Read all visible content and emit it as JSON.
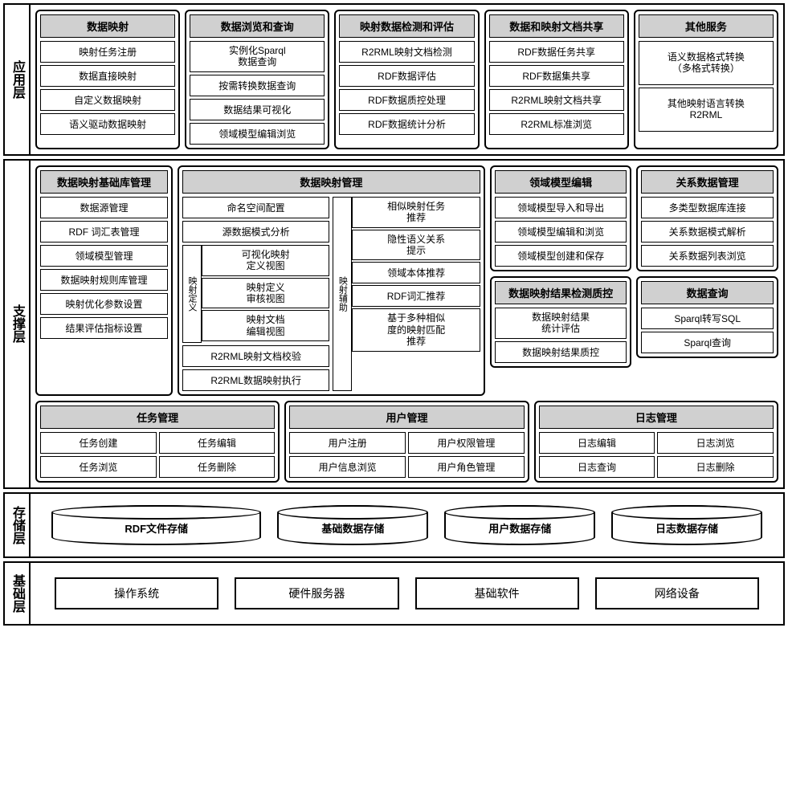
{
  "layers": {
    "app": {
      "label": "应用层"
    },
    "support": {
      "label": "支撑层"
    },
    "storage": {
      "label": "存储层"
    },
    "base": {
      "label": "基础层"
    }
  },
  "app": {
    "m1": {
      "header": "数据映射",
      "items": [
        "映射任务注册",
        "数据直接映射",
        "自定义数据映射",
        "语义驱动数据映射"
      ]
    },
    "m2": {
      "header": "数据浏览和查询",
      "items": [
        "实例化Sparql\n数据查询",
        "按需转换数据查询",
        "数据结果可视化",
        "领域模型编辑浏览"
      ]
    },
    "m3": {
      "header": "映射数据检测和评估",
      "items": [
        "R2RML映射文档检测",
        "RDF数据评估",
        "RDF数据质控处理",
        "RDF数据统计分析"
      ]
    },
    "m4": {
      "header": "数据和映射文档共享",
      "items": [
        "RDF数据任务共享",
        "RDF数据集共享",
        "R2RML映射文档共享",
        "R2RML标准浏览"
      ]
    },
    "m5": {
      "header": "其他服务",
      "items": [
        "语义数据格式转换\n（多格式转换）",
        "其他映射语言转换\nR2RML"
      ]
    }
  },
  "support": {
    "baselib": {
      "header": "数据映射基础库管理",
      "items": [
        "数据源管理",
        "RDF 词汇表管理",
        "领域模型管理",
        "数据映射规则库管理",
        "映射优化参数设置",
        "结果评估指标设置"
      ]
    },
    "mapping": {
      "header": "数据映射管理",
      "left_top": [
        "命名空间配置",
        "源数据模式分析"
      ],
      "def_label": "映射定义",
      "def_items": [
        "可视化映射\n定义视图",
        "映射定义\n审核视图",
        "映射文档\n编辑视图"
      ],
      "left_bottom": [
        "R2RML映射文档校验",
        "R2RML数据映射执行"
      ],
      "aux_label": "映射辅助",
      "aux_items": [
        "相似映射任务\n推荐",
        "隐性语义关系\n提示",
        "领域本体推荐",
        "RDF词汇推荐",
        "基于多种相似\n度的映射匹配\n推荐"
      ]
    },
    "domain": {
      "header": "领域模型编辑",
      "items": [
        "领域模型导入和导出",
        "领域模型编辑和浏览",
        "领域模型创建和保存"
      ]
    },
    "qc": {
      "header": "数据映射结果检测质控",
      "items": [
        "数据映射结果\n统计评估",
        "数据映射结果质控"
      ]
    },
    "relation": {
      "header": "关系数据管理",
      "items": [
        "多类型数据库连接",
        "关系数据模式解析",
        "关系数据列表浏览"
      ]
    },
    "query": {
      "header": "数据查询",
      "items": [
        "Sparql转写SQL",
        "Sparql查询"
      ]
    },
    "task": {
      "header": "任务管理",
      "left": [
        "任务创建",
        "任务浏览"
      ],
      "right": [
        "任务编辑",
        "任务删除"
      ]
    },
    "user": {
      "header": "用户管理",
      "left": [
        "用户注册",
        "用户信息浏览"
      ],
      "right": [
        "用户权限管理",
        "用户角色管理"
      ]
    },
    "log": {
      "header": "日志管理",
      "left": [
        "日志编辑",
        "日志查询"
      ],
      "right": [
        "日志浏览",
        "日志删除"
      ]
    }
  },
  "storage": [
    "RDF文件存储",
    "基础数据存储",
    "用户数据存储",
    "日志数据存储"
  ],
  "base": [
    "操作系统",
    "硬件服务器",
    "基础软件",
    "网络设备"
  ],
  "colors": {
    "header_bg": "#d0d0d0",
    "border": "#000000",
    "bg": "#ffffff"
  }
}
